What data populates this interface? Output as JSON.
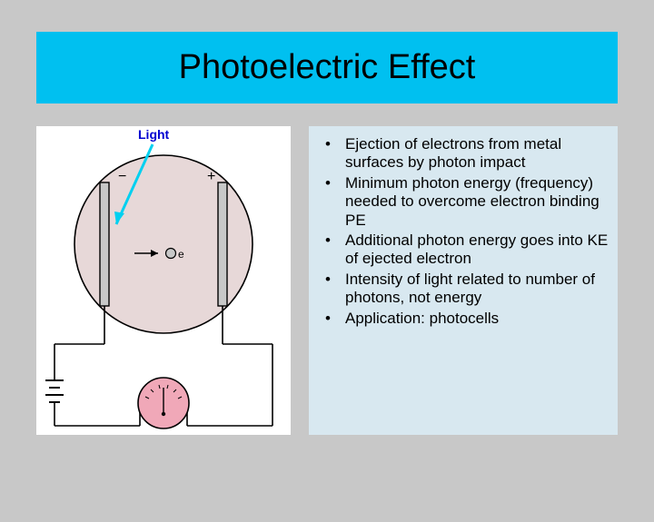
{
  "title": {
    "text": "Photoelectric Effect",
    "background_color": "#00c0f0",
    "font_size": 38
  },
  "text_panel": {
    "background_color": "#d8e8f0",
    "bullets": [
      "Ejection of electrons from metal surfaces by photon impact",
      "Minimum photon energy (frequency) needed to overcome electron binding PE",
      "Additional photon energy goes into KE of ejected electron",
      "Intensity of light related to number of photons, not energy",
      "Application:  photocells"
    ]
  },
  "diagram": {
    "background_color": "#ffffff",
    "tube_fill": "#e7d8d8",
    "tube_stroke": "#000000",
    "light_label": "Light",
    "light_label_color": "#0000d0",
    "light_arrow_color": "#00d0f0",
    "electrode_fill": "#c8c8c8",
    "electron_label": "e",
    "meter_fill": "#f0a8b8",
    "wire_color": "#000000",
    "minus_label": "−",
    "plus_label": "+"
  }
}
